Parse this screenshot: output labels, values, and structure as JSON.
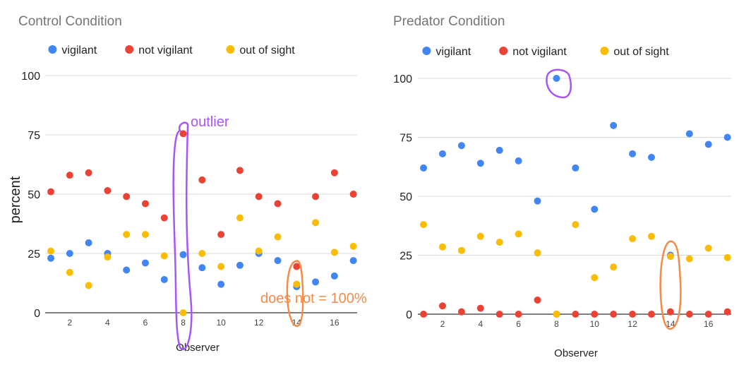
{
  "chart_data": [
    {
      "type": "scatter",
      "title": "Control Condition",
      "xlabel": "Observer",
      "ylabel": "percent",
      "x": [
        1,
        2,
        3,
        4,
        5,
        6,
        7,
        8,
        9,
        10,
        11,
        12,
        13,
        14,
        15,
        16,
        17
      ],
      "xlim": [
        0.7,
        17.2
      ],
      "xticks": [
        2,
        4,
        6,
        8,
        10,
        12,
        14,
        16
      ],
      "ylim": [
        0,
        100
      ],
      "yticks": [
        0,
        25,
        50,
        75,
        100
      ],
      "grid": true,
      "legend": "top-center",
      "series": [
        {
          "name": "vigilant",
          "color": "#4285f4",
          "values": [
            23,
            25,
            29.5,
            25,
            18,
            21,
            14,
            24.5,
            19,
            12,
            20,
            25,
            22,
            11,
            13,
            15.5,
            22
          ]
        },
        {
          "name": "not vigilant",
          "color": "#ea4335",
          "values": [
            51,
            58,
            59,
            51.5,
            49,
            46,
            40,
            75.5,
            56,
            33,
            60,
            49,
            46,
            19.5,
            49,
            59,
            50
          ]
        },
        {
          "name": "out of sight",
          "color": "#fbbc04",
          "values": [
            26,
            17,
            11.5,
            23.5,
            33,
            33,
            24,
            0,
            25,
            19.5,
            40,
            26,
            32,
            12,
            38,
            25.5,
            28
          ]
        }
      ],
      "annotations": [
        {
          "text": "outlier",
          "color": "#a855f7",
          "target_x": 8
        },
        {
          "text": "does not = 100%",
          "color": "#f38b4a",
          "target_x": 14
        }
      ]
    },
    {
      "type": "scatter",
      "title": "Predator Condition",
      "xlabel": "Observer",
      "ylabel": "",
      "x": [
        1,
        2,
        3,
        4,
        5,
        6,
        7,
        8,
        9,
        10,
        11,
        12,
        13,
        14,
        15,
        16,
        17
      ],
      "xlim": [
        0.7,
        17.2
      ],
      "xticks": [
        2,
        4,
        6,
        8,
        10,
        12,
        14,
        16
      ],
      "ylim": [
        0,
        100
      ],
      "yticks": [
        0,
        25,
        50,
        75,
        100
      ],
      "grid": true,
      "legend": "top-center",
      "series": [
        {
          "name": "vigilant",
          "color": "#4285f4",
          "values": [
            62,
            68,
            71.5,
            64,
            69.5,
            65,
            48,
            100,
            62,
            44.5,
            80,
            68,
            66.5,
            25,
            76.5,
            72,
            75
          ]
        },
        {
          "name": "not vigilant",
          "color": "#ea4335",
          "values": [
            0,
            3.5,
            1,
            2.5,
            0,
            0,
            6,
            0,
            0,
            0,
            0,
            0,
            0,
            1,
            0,
            0,
            1
          ]
        },
        {
          "name": "out of sight",
          "color": "#fbbc04",
          "values": [
            38,
            28.5,
            27,
            33,
            30.5,
            34,
            26,
            0,
            38,
            15.5,
            20,
            32,
            33,
            24.5,
            23.5,
            28,
            24
          ]
        }
      ],
      "annotations": [
        {
          "text": "",
          "color": "#a855f7",
          "target_x": 8
        },
        {
          "text": "",
          "color": "#f38b4a",
          "target_x": 14
        }
      ]
    }
  ]
}
